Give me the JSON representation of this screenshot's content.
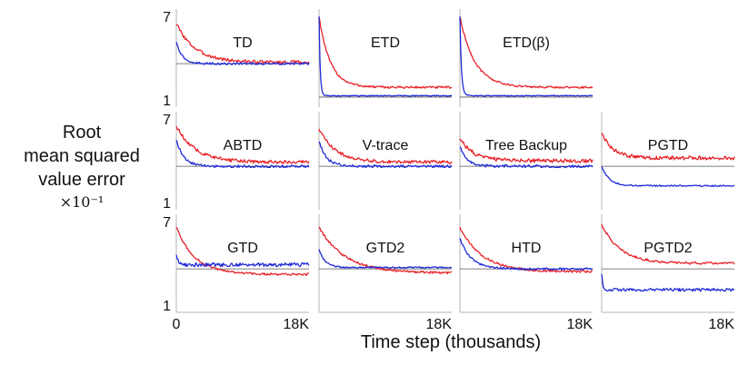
{
  "y_axis_label": [
    "Root",
    "mean squared",
    "value error"
  ],
  "y_axis_multiplier": "×10⁻¹",
  "x_axis_label": "Time step (thousands)",
  "colors": {
    "red_series": "#e8222a",
    "blue_series": "#1f2ad6",
    "reference_line": "#555555"
  },
  "chart_data": {
    "type": "line",
    "layout": "grid 3 rows x 4 columns of small multiples",
    "xlim": [
      0,
      18000
    ],
    "ylim": [
      1,
      7
    ],
    "y_ticks": [
      "7",
      "1"
    ],
    "x_ticks": [
      "0",
      "18K"
    ],
    "panels": [
      {
        "title": "TD",
        "row": 0,
        "col": 0,
        "reference": 3.6,
        "series": [
          {
            "color": "red",
            "start": 6.5,
            "end": 3.7,
            "decay": 2500,
            "noise": 0.12
          },
          {
            "color": "blue",
            "start": 5.2,
            "end": 3.6,
            "decay": 800,
            "noise": 0.07
          }
        ]
      },
      {
        "title": "ETD",
        "row": 0,
        "col": 1,
        "reference": 1.2,
        "series": [
          {
            "color": "red",
            "start": 7.0,
            "end": 1.9,
            "decay": 1500,
            "noise": 0.08
          },
          {
            "color": "blue",
            "start": 7.0,
            "end": 1.3,
            "decay": 150,
            "noise": 0.03
          }
        ]
      },
      {
        "title": "ETD(β)",
        "row": 0,
        "col": 2,
        "reference": 1.2,
        "series": [
          {
            "color": "red",
            "start": 7.0,
            "end": 1.9,
            "decay": 2000,
            "noise": 0.07
          },
          {
            "color": "blue",
            "start": 7.0,
            "end": 1.3,
            "decay": 200,
            "noise": 0.03
          }
        ]
      },
      {
        "title": "ABTD",
        "row": 1,
        "col": 0,
        "reference": 3.6,
        "series": [
          {
            "color": "red",
            "start": 6.5,
            "end": 3.9,
            "decay": 2500,
            "noise": 0.12
          },
          {
            "color": "blue",
            "start": 5.5,
            "end": 3.6,
            "decay": 1000,
            "noise": 0.09
          }
        ]
      },
      {
        "title": "V-trace",
        "row": 1,
        "col": 1,
        "reference": 3.6,
        "series": [
          {
            "color": "red",
            "start": 6.3,
            "end": 3.9,
            "decay": 2200,
            "noise": 0.12
          },
          {
            "color": "blue",
            "start": 5.4,
            "end": 3.6,
            "decay": 1000,
            "noise": 0.09
          }
        ]
      },
      {
        "title": "Tree Backup",
        "row": 1,
        "col": 2,
        "reference": 3.6,
        "series": [
          {
            "color": "red",
            "start": 5.6,
            "end": 4.0,
            "decay": 1800,
            "noise": 0.14
          },
          {
            "color": "blue",
            "start": 5.0,
            "end": 3.6,
            "decay": 1000,
            "noise": 0.1
          }
        ]
      },
      {
        "title": "PGTD",
        "row": 1,
        "col": 3,
        "reference": 3.6,
        "series": [
          {
            "color": "red",
            "start": 6.0,
            "end": 4.2,
            "decay": 1500,
            "noise": 0.14
          },
          {
            "color": "blue",
            "start": 3.6,
            "end": 2.2,
            "decay": 1000,
            "noise": 0.05
          }
        ]
      },
      {
        "title": "GTD",
        "row": 2,
        "col": 0,
        "reference": 3.6,
        "series": [
          {
            "color": "red",
            "start": 6.6,
            "end": 3.2,
            "decay": 2500,
            "noise": 0.08
          },
          {
            "color": "blue",
            "start": 4.6,
            "end": 3.9,
            "decay": 300,
            "noise": 0.14
          }
        ]
      },
      {
        "title": "GTD2",
        "row": 2,
        "col": 1,
        "reference": 3.6,
        "series": [
          {
            "color": "red",
            "start": 6.6,
            "end": 3.3,
            "decay": 3500,
            "noise": 0.08
          },
          {
            "color": "blue",
            "start": 5.0,
            "end": 3.7,
            "decay": 800,
            "noise": 0.05
          }
        ]
      },
      {
        "title": "HTD",
        "row": 2,
        "col": 2,
        "reference": 3.6,
        "series": [
          {
            "color": "red",
            "start": 6.6,
            "end": 3.4,
            "decay": 3000,
            "noise": 0.08
          },
          {
            "color": "blue",
            "start": 5.8,
            "end": 3.6,
            "decay": 1500,
            "noise": 0.08
          }
        ]
      },
      {
        "title": "PGTD2",
        "row": 2,
        "col": 3,
        "reference": 3.6,
        "series": [
          {
            "color": "red",
            "start": 6.8,
            "end": 4.0,
            "decay": 2500,
            "noise": 0.08
          },
          {
            "color": "blue",
            "start": 3.2,
            "end": 2.1,
            "decay": 150,
            "noise": 0.1
          }
        ]
      }
    ]
  }
}
